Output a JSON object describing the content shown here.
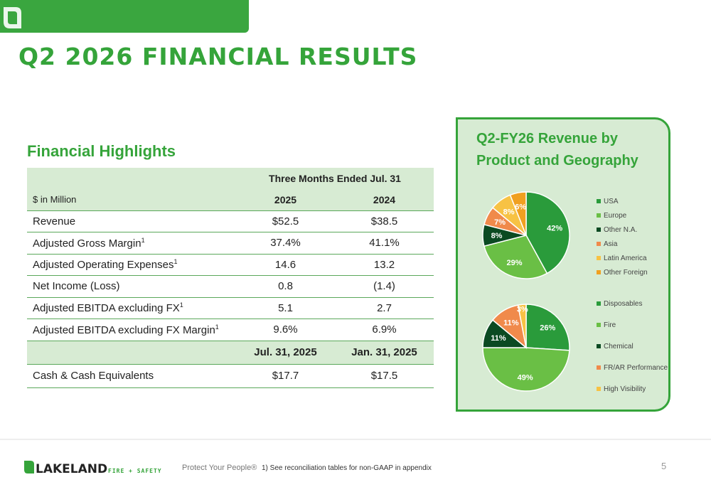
{
  "slide": {
    "title": "Q2 2026 FINANCIAL RESULTS",
    "page_number": "5"
  },
  "highlights": {
    "title": "Financial Highlights",
    "header_period": "Three Months Ended Jul. 31",
    "unit_label": "$ in Million",
    "year1": "2025",
    "year2": "2024",
    "rows": [
      {
        "label": "Revenue",
        "sup": "",
        "v1": "$52.5",
        "v2": "$38.5"
      },
      {
        "label": "Adjusted Gross Margin",
        "sup": "1",
        "v1": "37.4%",
        "v2": "41.1%"
      },
      {
        "label": "Adjusted Operating Expenses",
        "sup": "1",
        "v1": "14.6",
        "v2": "13.2"
      },
      {
        "label": "Net Income (Loss)",
        "sup": "",
        "v1": "0.8",
        "v2": "(1.4)"
      },
      {
        "label": "Adjusted EBITDA excluding FX",
        "sup": "1",
        "v1": "5.1",
        "v2": "2.7"
      },
      {
        "label": "Adjusted EBITDA excluding FX Margin",
        "sup": "1",
        "v1": "9.6%",
        "v2": "6.9%"
      }
    ],
    "date1": "Jul. 31, 2025",
    "date2": "Jan. 31, 2025",
    "cash": {
      "label": "Cash & Cash Equivalents",
      "v1": "$17.7",
      "v2": "$17.5"
    }
  },
  "panel": {
    "title": "Q2-FY26 Revenue by Product and Geography"
  },
  "chart_data": [
    {
      "type": "pie",
      "title": "",
      "categories": [
        "USA",
        "Europe",
        "Other N.A.",
        "Asia",
        "Latin America",
        "Other Foreign"
      ],
      "values": [
        42,
        29,
        8,
        7,
        8,
        6
      ],
      "labels": [
        "42%",
        "29%",
        "8%",
        "7%",
        "8%",
        "6%"
      ],
      "colors": [
        "#2a9b3b",
        "#6abf45",
        "#0b4a22",
        "#f08a4b",
        "#f7c244",
        "#f0a020"
      ],
      "label_colors": [
        "#ffffff",
        "#ffffff",
        "#ffffff",
        "#ffffff",
        "#ffffff",
        "#ffffff"
      ],
      "legend_placement": "right"
    },
    {
      "type": "pie",
      "title": "",
      "categories": [
        "Disposables",
        "Fire",
        "Chemical",
        "FR/AR Performance",
        "High Visibility"
      ],
      "values": [
        26,
        49,
        11,
        11,
        3
      ],
      "labels": [
        "26%",
        "49%",
        "11%",
        "11%",
        "3%"
      ],
      "colors": [
        "#2a9b3b",
        "#6abf45",
        "#0b4a22",
        "#f08a4b",
        "#f7c244"
      ],
      "label_colors": [
        "#ffffff",
        "#ffffff",
        "#ffffff",
        "#ffffff",
        "#ffffff"
      ],
      "legend_placement": "right"
    }
  ],
  "footer": {
    "brand": "LAKELAND",
    "brand_sub": "FIRE + SAFETY",
    "tagline": "Protect Your People®",
    "footnote": "1) See reconciliation tables for non-GAAP in appendix"
  },
  "colors": {
    "accent": "#35a43a",
    "table_header_bg": "#d7ebd3"
  }
}
